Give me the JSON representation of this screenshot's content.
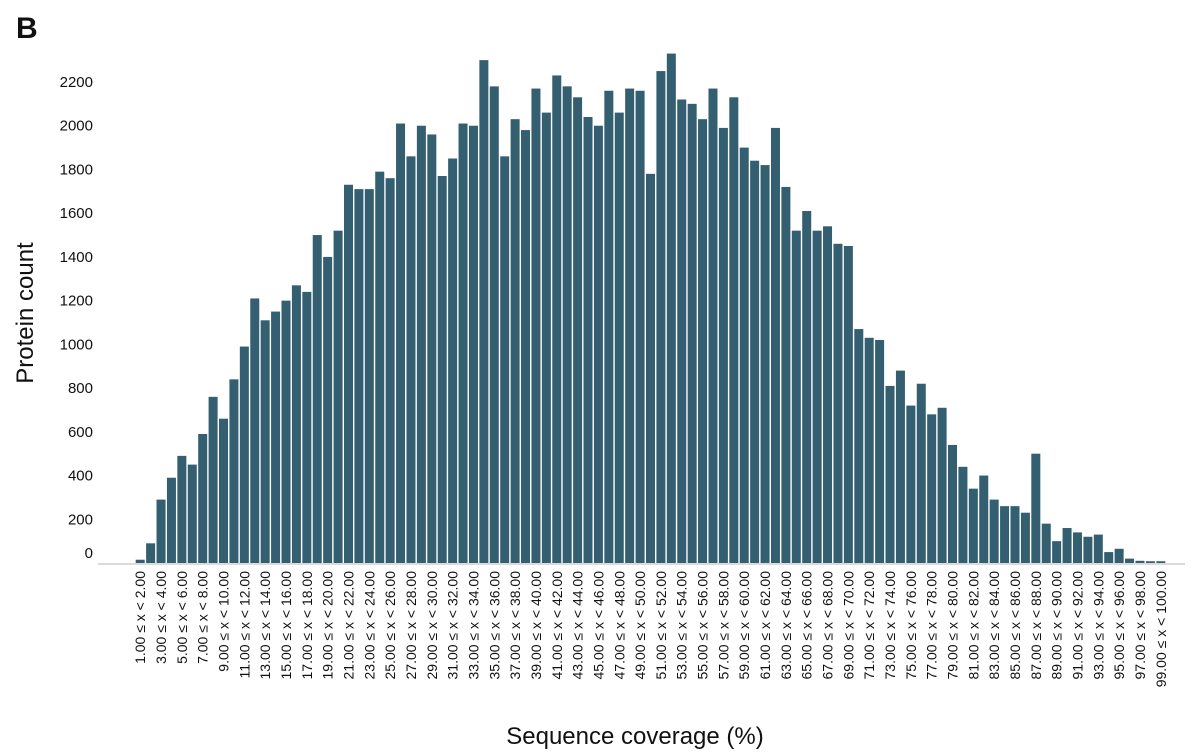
{
  "panel_label": "B",
  "colors": {
    "bar": "#335f70",
    "axis": "#cfcfcf",
    "text": "#111111"
  },
  "chart_data": {
    "type": "bar",
    "title": "",
    "xlabel": "Sequence coverage (%)",
    "ylabel": "Protein count",
    "ylim": [
      0,
      2300
    ],
    "yticks": [
      0,
      200,
      400,
      600,
      800,
      1000,
      1200,
      1400,
      1600,
      1800,
      2000,
      2200
    ],
    "grid": false,
    "labeled_every": 2,
    "categories": [
      "1.00 ≤ x < 2.00",
      "2.00 ≤ x < 3.00",
      "3.00 ≤ x < 4.00",
      "4.00 ≤ x < 5.00",
      "5.00 ≤ x < 6.00",
      "6.00 ≤ x < 7.00",
      "7.00 ≤ x < 8.00",
      "8.00 ≤ x < 9.00",
      "9.00 ≤ x < 10.00",
      "10.00 ≤ x < 11.00",
      "11.00 ≤ x < 12.00",
      "12.00 ≤ x < 13.00",
      "13.00 ≤ x < 14.00",
      "14.00 ≤ x < 15.00",
      "15.00 ≤ x < 16.00",
      "16.00 ≤ x < 17.00",
      "17.00 ≤ x < 18.00",
      "18.00 ≤ x < 19.00",
      "19.00 ≤ x < 20.00",
      "20.00 ≤ x < 21.00",
      "21.00 ≤ x < 22.00",
      "22.00 ≤ x < 23.00",
      "23.00 ≤ x < 24.00",
      "24.00 ≤ x < 25.00",
      "25.00 ≤ x < 26.00",
      "26.00 ≤ x < 27.00",
      "27.00 ≤ x < 28.00",
      "28.00 ≤ x < 29.00",
      "29.00 ≤ x < 30.00",
      "30.00 ≤ x < 31.00",
      "31.00 ≤ x < 32.00",
      "32.00 ≤ x < 33.00",
      "33.00 ≤ x < 34.00",
      "34.00 ≤ x < 35.00",
      "35.00 ≤ x < 36.00",
      "36.00 ≤ x < 37.00",
      "37.00 ≤ x < 38.00",
      "38.00 ≤ x < 39.00",
      "39.00 ≤ x < 40.00",
      "40.00 ≤ x < 41.00",
      "41.00 ≤ x < 42.00",
      "42.00 ≤ x < 43.00",
      "43.00 ≤ x < 44.00",
      "44.00 ≤ x < 45.00",
      "45.00 ≤ x < 46.00",
      "46.00 ≤ x < 47.00",
      "47.00 ≤ x < 48.00",
      "48.00 ≤ x < 49.00",
      "49.00 ≤ x < 50.00",
      "50.00 ≤ x < 51.00",
      "51.00 ≤ x < 52.00",
      "52.00 ≤ x < 53.00",
      "53.00 ≤ x < 54.00",
      "54.00 ≤ x < 55.00",
      "55.00 ≤ x < 56.00",
      "56.00 ≤ x < 57.00",
      "57.00 ≤ x < 58.00",
      "58.00 ≤ x < 59.00",
      "59.00 ≤ x < 60.00",
      "60.00 ≤ x < 61.00",
      "61.00 ≤ x < 62.00",
      "62.00 ≤ x < 63.00",
      "63.00 ≤ x < 64.00",
      "64.00 ≤ x < 65.00",
      "65.00 ≤ x < 66.00",
      "66.00 ≤ x < 67.00",
      "67.00 ≤ x < 68.00",
      "68.00 ≤ x < 69.00",
      "69.00 ≤ x < 70.00",
      "70.00 ≤ x < 71.00",
      "71.00 ≤ x < 72.00",
      "72.00 ≤ x < 73.00",
      "73.00 ≤ x < 74.00",
      "74.00 ≤ x < 75.00",
      "75.00 ≤ x < 76.00",
      "76.00 ≤ x < 77.00",
      "77.00 ≤ x < 78.00",
      "78.00 ≤ x < 79.00",
      "79.00 ≤ x < 80.00",
      "80.00 ≤ x < 81.00",
      "81.00 ≤ x < 82.00",
      "82.00 ≤ x < 83.00",
      "83.00 ≤ x < 84.00",
      "84.00 ≤ x < 85.00",
      "85.00 ≤ x < 86.00",
      "86.00 ≤ x < 87.00",
      "87.00 ≤ x < 88.00",
      "88.00 ≤ x < 89.00",
      "89.00 ≤ x < 90.00",
      "90.00 ≤ x < 91.00",
      "91.00 ≤ x < 92.00",
      "92.00 ≤ x < 93.00",
      "93.00 ≤ x < 94.00",
      "94.00 ≤ x < 95.00",
      "95.00 ≤ x < 96.00",
      "96.00 ≤ x < 97.00",
      "97.00 ≤ x < 98.00",
      "98.00 ≤ x < 99.00",
      "99.00 ≤ x < 100.00"
    ],
    "values": [
      15,
      90,
      290,
      390,
      490,
      450,
      590,
      760,
      660,
      840,
      990,
      1210,
      1110,
      1150,
      1200,
      1270,
      1240,
      1500,
      1400,
      1520,
      1730,
      1710,
      1710,
      1790,
      1760,
      2010,
      1860,
      2000,
      1960,
      1770,
      1850,
      2010,
      2000,
      2300,
      2180,
      1860,
      2030,
      1980,
      2170,
      2060,
      2230,
      2180,
      2130,
      2040,
      2000,
      2160,
      2060,
      2170,
      2160,
      1780,
      2250,
      2330,
      2120,
      2100,
      2030,
      2170,
      1990,
      2130,
      1900,
      1840,
      1820,
      1990,
      1720,
      1520,
      1610,
      1520,
      1540,
      1460,
      1450,
      1070,
      1030,
      1020,
      810,
      880,
      720,
      820,
      680,
      710,
      540,
      440,
      340,
      400,
      290,
      260,
      260,
      230,
      500,
      180,
      100,
      160,
      140,
      120,
      130,
      50,
      65,
      20,
      10,
      8,
      8
    ]
  }
}
